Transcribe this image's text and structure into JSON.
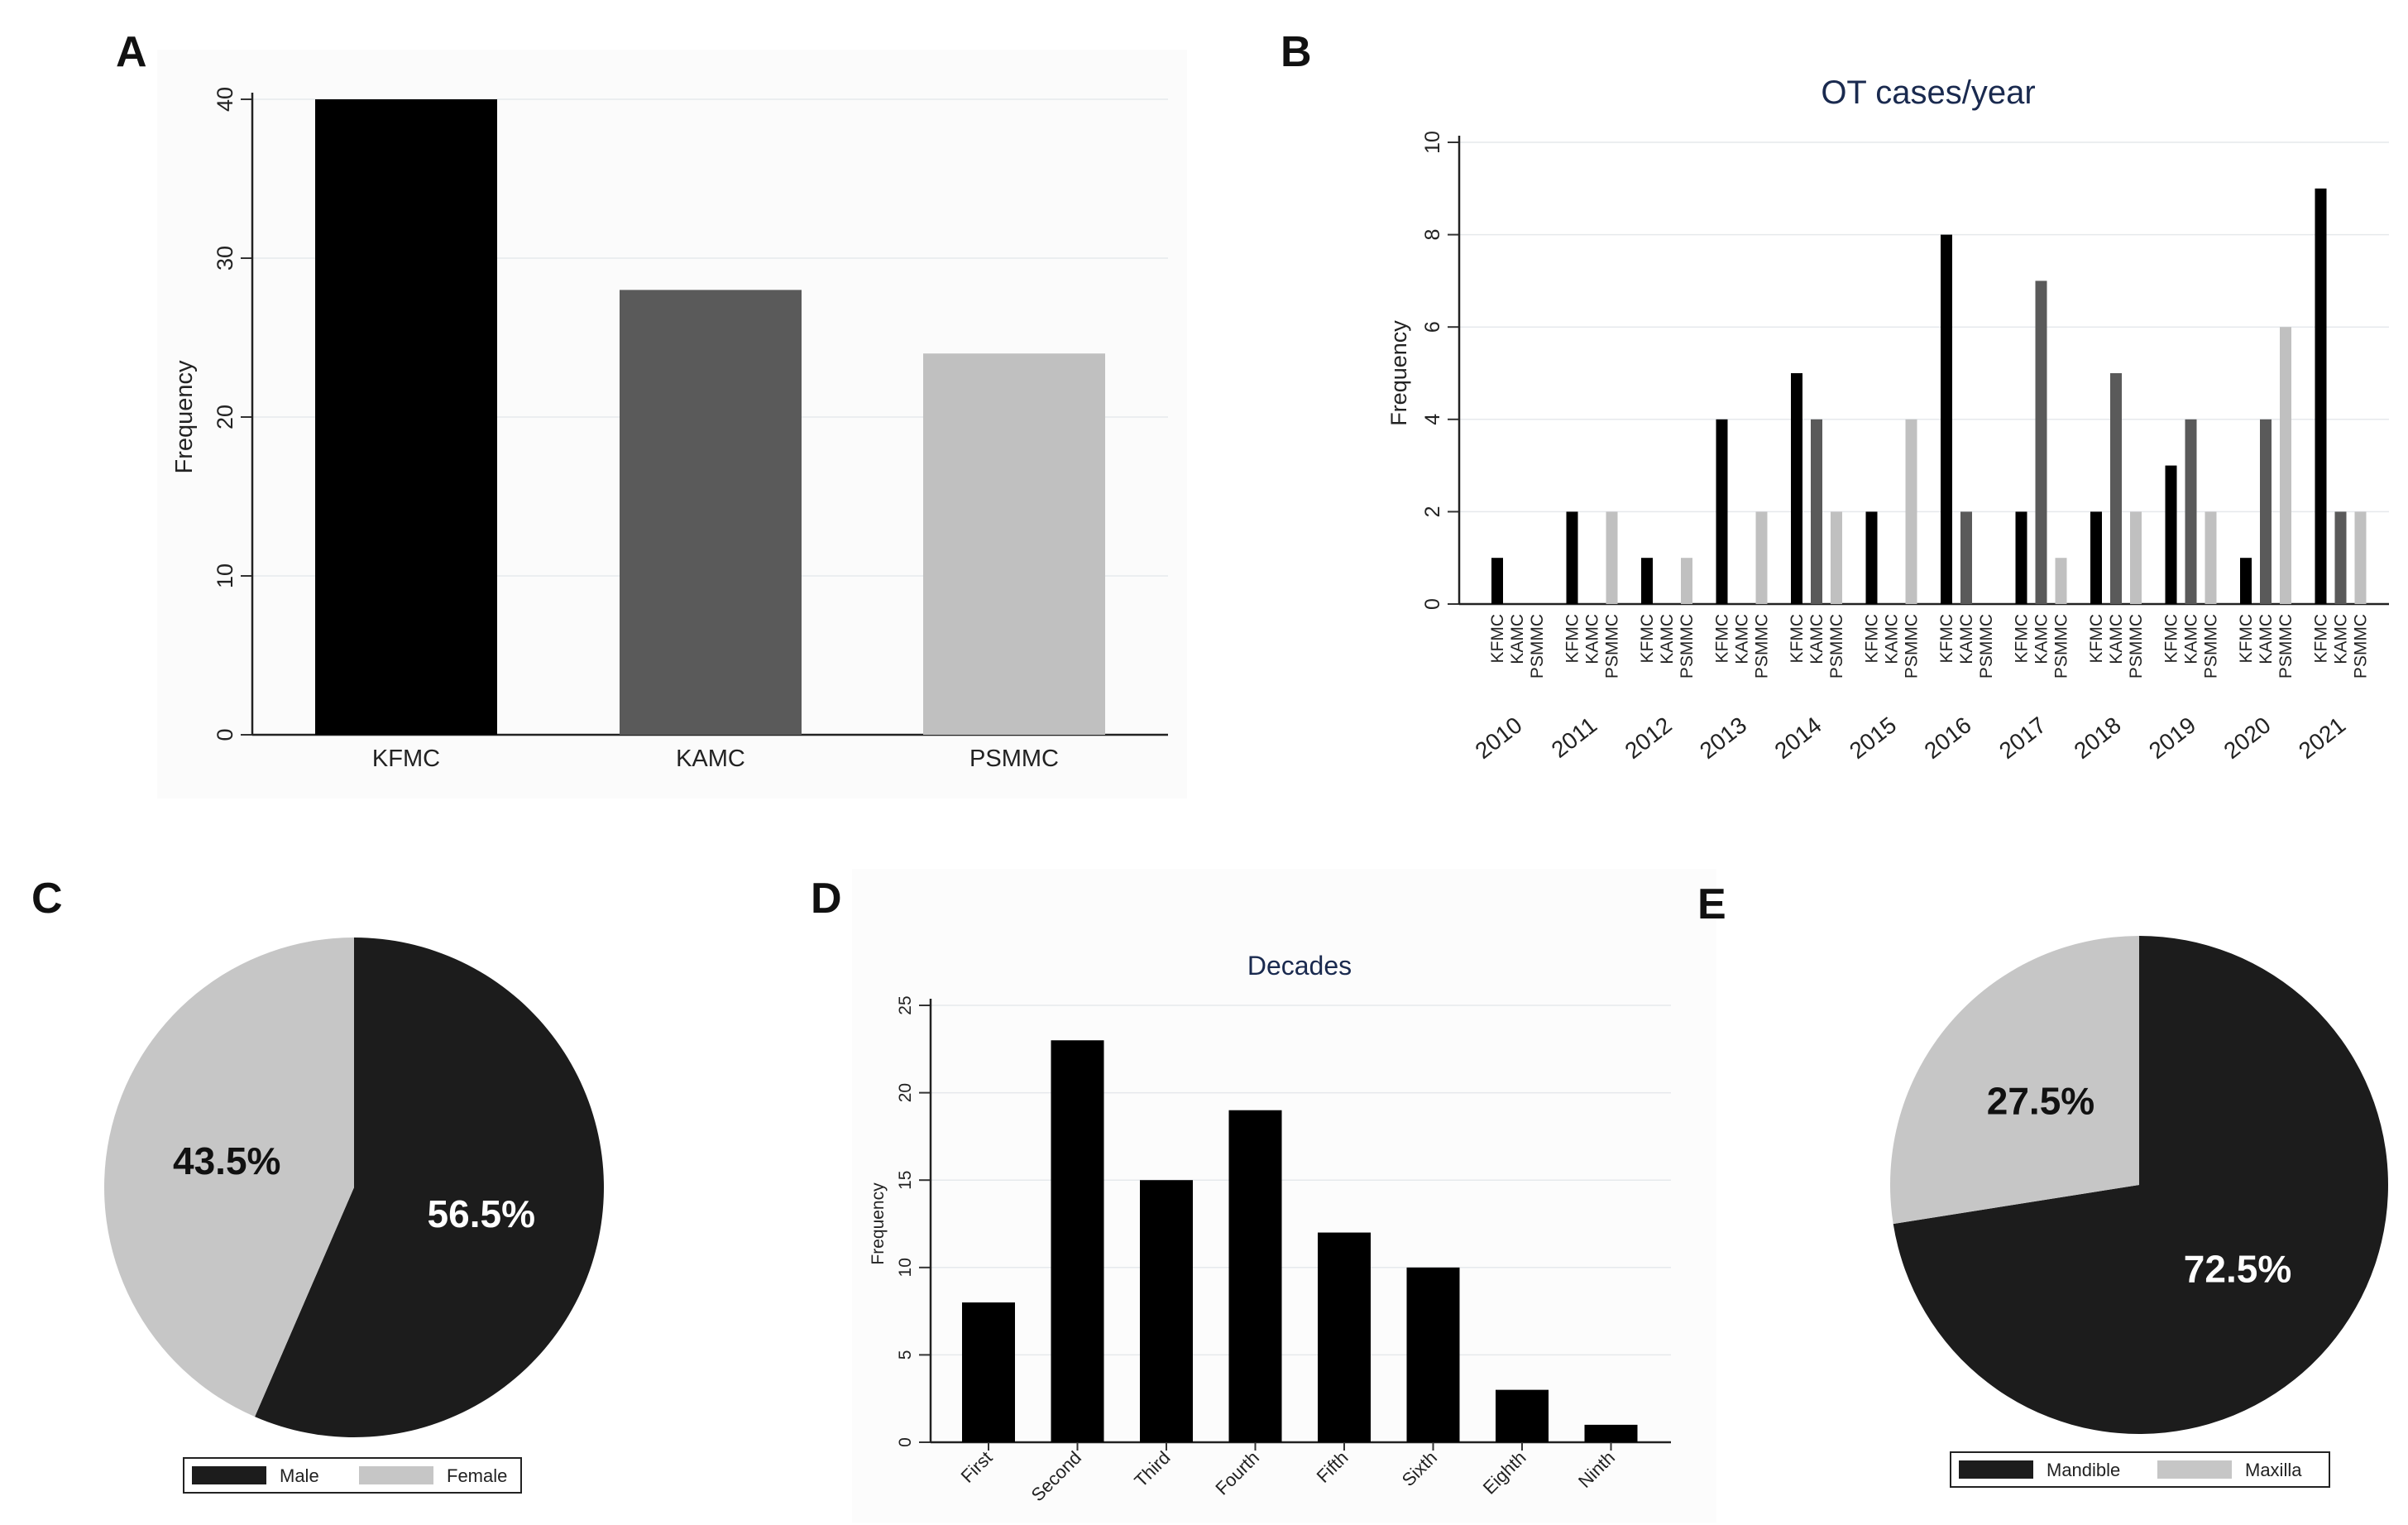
{
  "panels": {
    "a": "A",
    "b": "B",
    "c": "C",
    "d": "D",
    "e": "E"
  },
  "colors": {
    "kfmc": "#000000",
    "kamc": "#5a5a5a",
    "psmmc": "#c0c0c0",
    "dark": "#1c1c1c",
    "light": "#c6c6c6"
  },
  "chart_data": [
    {
      "id": "A",
      "type": "bar",
      "title": "",
      "xlabel": "",
      "ylabel": "Frequency",
      "categories": [
        "KFMC",
        "KAMC",
        "PSMMC"
      ],
      "values": [
        40,
        28,
        24
      ],
      "colors": [
        "#000000",
        "#5a5a5a",
        "#c0c0c0"
      ],
      "ylim": [
        0,
        40
      ],
      "yticks": [
        "0",
        "10",
        "20",
        "30",
        "40"
      ],
      "grid": true
    },
    {
      "id": "B",
      "type": "bar",
      "title": "OT cases/year",
      "xlabel": "",
      "ylabel": "Frequency",
      "categories": [
        "2010",
        "2011",
        "2012",
        "2013",
        "2014",
        "2015",
        "2016",
        "2017",
        "2018",
        "2019",
        "2020",
        "2021"
      ],
      "subcategories": [
        "KFMC",
        "KAMC",
        "PSMMC"
      ],
      "series": [
        {
          "name": "KFMC",
          "color": "#000000",
          "values": [
            1,
            2,
            1,
            4,
            5,
            2,
            8,
            2,
            2,
            3,
            1,
            9
          ]
        },
        {
          "name": "KAMC",
          "color": "#5a5a5a",
          "values": [
            0,
            0,
            0,
            0,
            4,
            0,
            2,
            7,
            5,
            4,
            4,
            2
          ]
        },
        {
          "name": "PSMMC",
          "color": "#c0c0c0",
          "values": [
            0,
            2,
            1,
            2,
            2,
            4,
            0,
            1,
            2,
            2,
            6,
            2
          ]
        }
      ],
      "ylim": [
        0,
        10
      ],
      "yticks": [
        "0",
        "2",
        "4",
        "6",
        "8",
        "10"
      ],
      "grid": true
    },
    {
      "id": "C",
      "type": "pie",
      "title": "",
      "slices": [
        {
          "label": "Male",
          "value": 56.5,
          "text": "56.5%",
          "color": "#1c1c1c"
        },
        {
          "label": "Female",
          "value": 43.5,
          "text": "43.5%",
          "color": "#c6c6c6"
        }
      ],
      "legend": "bottom"
    },
    {
      "id": "D",
      "type": "bar",
      "title": "Decades",
      "xlabel": "",
      "ylabel": "Frequency",
      "categories": [
        "First",
        "Second",
        "Third",
        "Fourth",
        "Fifth",
        "Sixth",
        "Eighth",
        "Ninth"
      ],
      "values": [
        8,
        23,
        15,
        19,
        12,
        10,
        3,
        1
      ],
      "colors": [
        "#000000"
      ],
      "ylim": [
        0,
        25
      ],
      "yticks": [
        "0",
        "5",
        "10",
        "15",
        "20",
        "25"
      ],
      "grid": true
    },
    {
      "id": "E",
      "type": "pie",
      "title": "",
      "slices": [
        {
          "label": "Mandible",
          "value": 72.5,
          "text": "72.5%",
          "color": "#1c1c1c"
        },
        {
          "label": "Maxilla",
          "value": 27.5,
          "text": "27.5%",
          "color": "#c6c6c6"
        }
      ],
      "legend": "bottom"
    }
  ]
}
